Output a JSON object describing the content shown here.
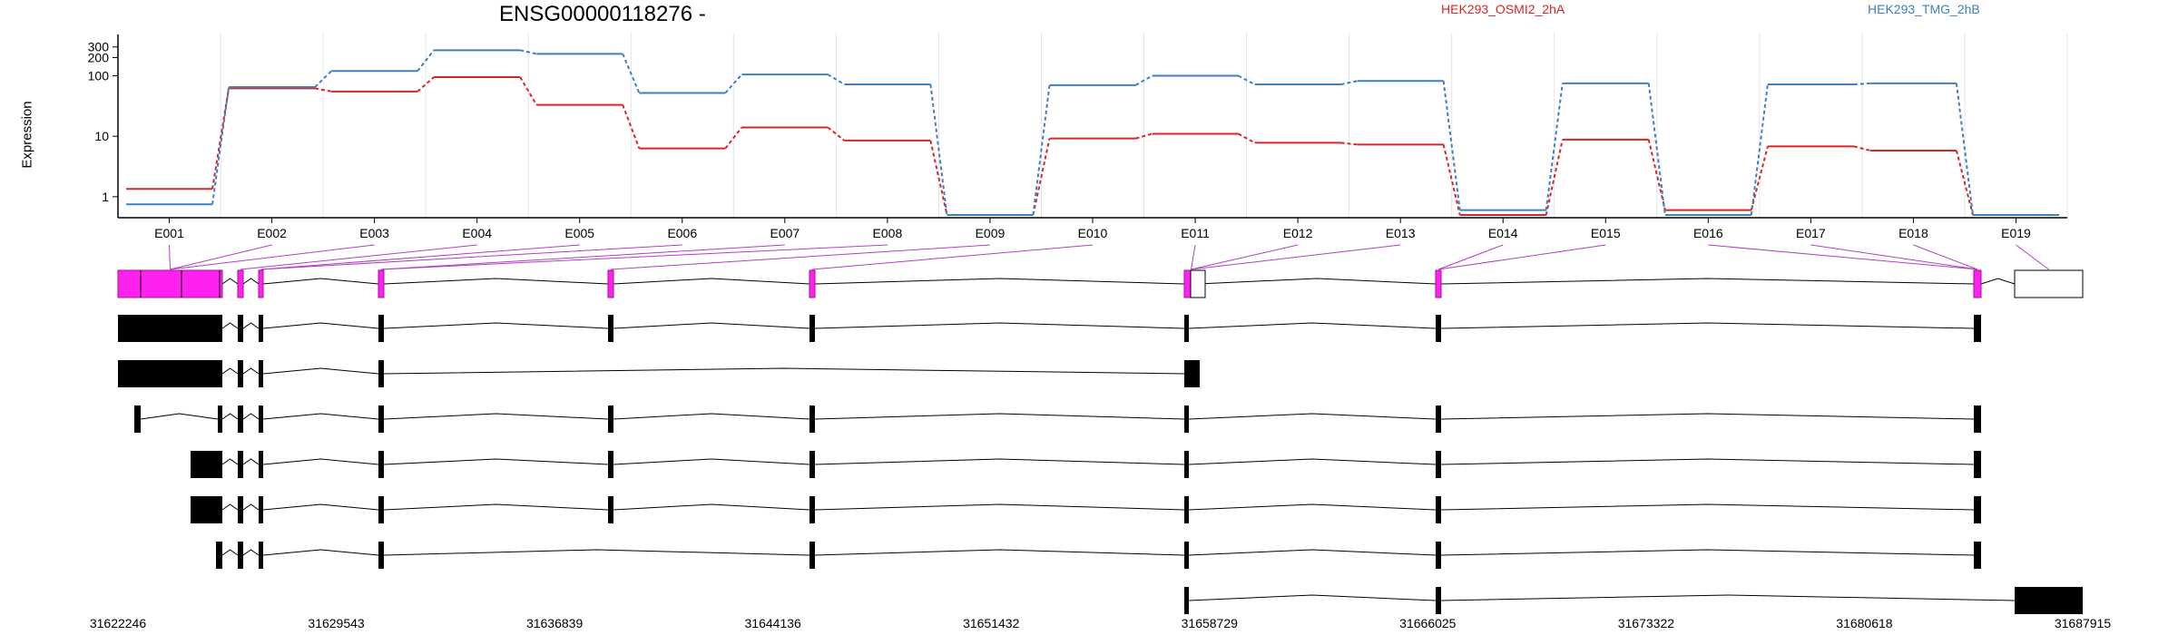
{
  "chart_data": {
    "type": "line",
    "title": "ENSG00000118276 -",
    "ylabel": "Expression",
    "yscale": "log",
    "ylim": [
      0.45,
      420
    ],
    "yticks": [
      1,
      10,
      100,
      200,
      300
    ],
    "ytick_labels": [
      "1",
      "10",
      "100",
      "200",
      "300"
    ],
    "grid": "vertical",
    "categories": [
      "E001",
      "E002",
      "E003",
      "E004",
      "E005",
      "E006",
      "E007",
      "E008",
      "E009",
      "E010",
      "E011",
      "E012",
      "E013",
      "E014",
      "E015",
      "E016",
      "E017",
      "E018",
      "E019"
    ],
    "series": [
      {
        "name": "HEK293_OSMI2_2hA",
        "color": "#d62728",
        "values": [
          1.35,
          62,
          55,
          95,
          33,
          6.3,
          14,
          8.5,
          0.5,
          9.2,
          11,
          7.8,
          7.3,
          0.5,
          8.8,
          0.6,
          6.8,
          5.8,
          0.5
        ]
      },
      {
        "name": "HEK293_TMG_2hB",
        "color": "#3e80c0",
        "values": [
          0.75,
          65,
          120,
          265,
          230,
          52,
          105,
          72,
          0.5,
          70,
          100,
          72,
          82,
          0.6,
          75,
          0.5,
          72,
          75,
          0.5
        ]
      }
    ],
    "genomic_axis": {
      "ticks": [
        "31622246",
        "31629543",
        "31636839",
        "31644136",
        "31651432",
        "31658729",
        "31666025",
        "31673322",
        "31680618",
        "31687915"
      ]
    },
    "transcripts": 8
  }
}
